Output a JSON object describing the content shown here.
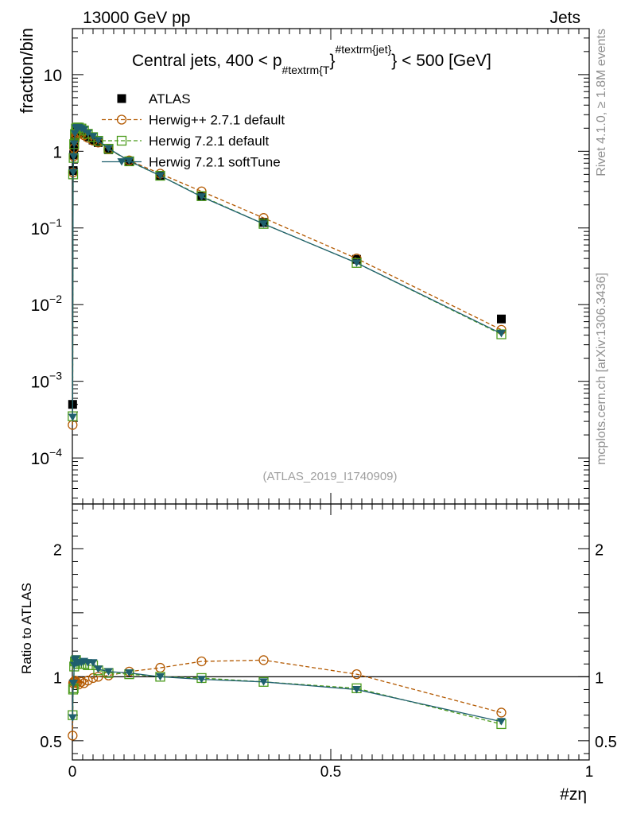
{
  "header": {
    "left": "13000 GeV pp",
    "right": "Jets"
  },
  "side_labels": {
    "rivet": "Rivet 4.1.0, ≥ 1.8M events",
    "mcplots": "mcplots.cern.ch [arXiv:1306.3436]"
  },
  "chart_data": {
    "type": "line",
    "title": "Central jets, 400 < p",
    "title_sub": "#textrm{T",
    "title_brace": "}",
    "title_sup": "#textrm{jet}",
    "title_suffix": "} < 500 [GeV]",
    "analysis_id": "(ATLAS_2019_I1740909)",
    "xlabel": "#zη",
    "ylabel_main": "fraction/bin",
    "ylabel_ratio": "Ratio to ATLAS",
    "xlim": [
      0,
      1
    ],
    "ylim_main_log10": [
      -4.6,
      1.6
    ],
    "ylim_ratio": [
      0.35,
      2.35
    ],
    "x_ticks": [
      {
        "value": 0,
        "label": "0"
      },
      {
        "value": 0.5,
        "label": "0.5"
      },
      {
        "value": 1,
        "label": "1"
      }
    ],
    "y_ticks_main": [
      {
        "exp": 1,
        "base": "10",
        "sup": ""
      },
      {
        "exp": 0,
        "base": "1",
        "sup": ""
      },
      {
        "exp": -1,
        "base": "10",
        "sup": "−1"
      },
      {
        "exp": -2,
        "base": "10",
        "sup": "−2"
      },
      {
        "exp": -3,
        "base": "10",
        "sup": "−3"
      },
      {
        "exp": -4,
        "base": "10",
        "sup": "−4"
      }
    ],
    "y_ticks_ratio": [
      {
        "value": 0.5,
        "label": "0.5"
      },
      {
        "value": 1,
        "label": "1"
      },
      {
        "value": 2,
        "label": "2"
      }
    ],
    "x": [
      0.0005,
      0.0015,
      0.0025,
      0.0035,
      0.005,
      0.007,
      0.009,
      0.0125,
      0.0175,
      0.0225,
      0.03,
      0.04,
      0.05,
      0.07,
      0.11,
      0.17,
      0.25,
      0.37,
      0.55,
      0.83
    ],
    "series": [
      {
        "name": "ATLAS",
        "style": "data",
        "color": "#000000",
        "marker": "square-filled",
        "values": [
          0.0005,
          0.56,
          0.9,
          1.15,
          1.5,
          1.75,
          1.85,
          1.85,
          1.8,
          1.7,
          1.55,
          1.4,
          1.3,
          1.05,
          0.73,
          0.48,
          0.26,
          0.118,
          0.039,
          0.0065
        ]
      },
      {
        "name": "Herwig++ 2.7.1 default",
        "style": "dashed",
        "color": "#b35900",
        "marker": "circle-open",
        "values": [
          0.00027,
          0.53,
          0.86,
          1.1,
          1.45,
          1.68,
          1.76,
          1.74,
          1.72,
          1.62,
          1.5,
          1.38,
          1.3,
          1.06,
          0.76,
          0.51,
          0.3,
          0.135,
          0.04,
          0.0047
        ],
        "ratio": [
          0.54,
          0.95,
          0.96,
          0.96,
          0.97,
          0.96,
          0.95,
          0.94,
          0.96,
          0.95,
          0.97,
          0.99,
          1.0,
          1.01,
          1.04,
          1.07,
          1.12,
          1.13,
          1.02,
          0.72
        ]
      },
      {
        "name": "Herwig 7.2.1 default",
        "style": "dashed",
        "color": "#4a9a1a",
        "marker": "square-open",
        "values": [
          0.00035,
          0.5,
          0.82,
          1.24,
          1.68,
          1.98,
          2.04,
          2.04,
          1.98,
          1.87,
          1.69,
          1.53,
          1.37,
          1.08,
          0.74,
          0.48,
          0.26,
          0.113,
          0.035,
          0.0041
        ],
        "ratio": [
          0.7,
          0.9,
          0.91,
          1.08,
          1.12,
          1.13,
          1.1,
          1.1,
          1.1,
          1.1,
          1.09,
          1.09,
          1.05,
          1.03,
          1.02,
          1.0,
          0.99,
          0.96,
          0.91,
          0.63
        ]
      },
      {
        "name": "Herwig 7.2.1 softTune",
        "style": "solid",
        "color": "#1f5f6e",
        "marker": "triangle-down",
        "values": [
          0.00034,
          0.53,
          0.85,
          1.25,
          1.7,
          2.0,
          2.05,
          2.05,
          1.99,
          1.9,
          1.72,
          1.56,
          1.38,
          1.09,
          0.75,
          0.48,
          0.255,
          0.113,
          0.035,
          0.0042
        ],
        "ratio": [
          0.68,
          0.95,
          0.95,
          1.09,
          1.13,
          1.14,
          1.11,
          1.11,
          1.11,
          1.12,
          1.11,
          1.11,
          1.06,
          1.04,
          1.03,
          1.0,
          0.98,
          0.96,
          0.9,
          0.65
        ]
      }
    ]
  }
}
